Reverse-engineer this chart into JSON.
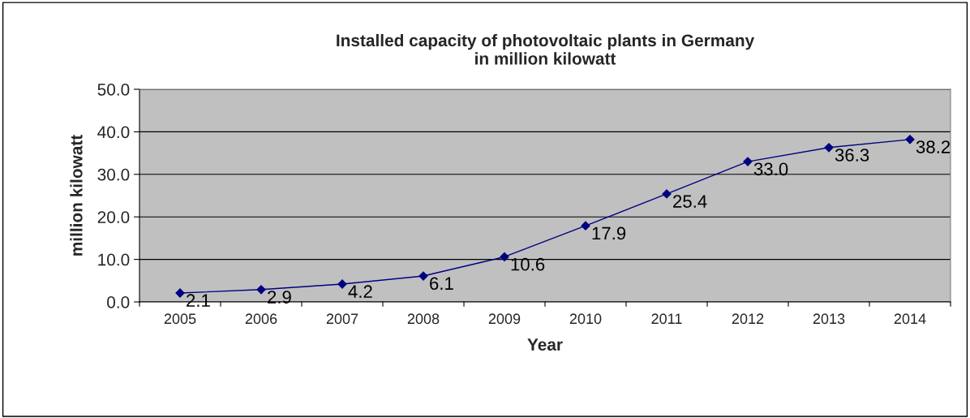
{
  "chart_data": {
    "type": "line",
    "title": "Installed capacity of photovoltaic plants in Germany\nin million kilowatt",
    "xlabel": "Year",
    "ylabel": "million kilowatt",
    "categories": [
      "2005",
      "2006",
      "2007",
      "2008",
      "2009",
      "2010",
      "2011",
      "2012",
      "2013",
      "2014"
    ],
    "series": [
      {
        "color": "#000080",
        "values": [
          2.1,
          2.9,
          4.2,
          6.1,
          10.6,
          17.9,
          25.4,
          33.0,
          36.3,
          38.2
        ]
      }
    ],
    "value_labels": [
      "2.1",
      "2.9",
      "4.2",
      "6.1",
      "10.6",
      "17.9",
      "25.4",
      "33.0",
      "36.3",
      "38.2"
    ],
    "ylim": [
      0,
      50
    ],
    "yticks": [
      {
        "value": 0,
        "label": "0.0"
      },
      {
        "value": 10,
        "label": "10.0"
      },
      {
        "value": 20,
        "label": "20.0"
      },
      {
        "value": 30,
        "label": "30.0"
      },
      {
        "value": 40,
        "label": "40.0"
      },
      {
        "value": 50,
        "label": "50.0"
      }
    ],
    "grid": "y",
    "marker": "diamond",
    "line_style": "solid",
    "legend": false
  }
}
